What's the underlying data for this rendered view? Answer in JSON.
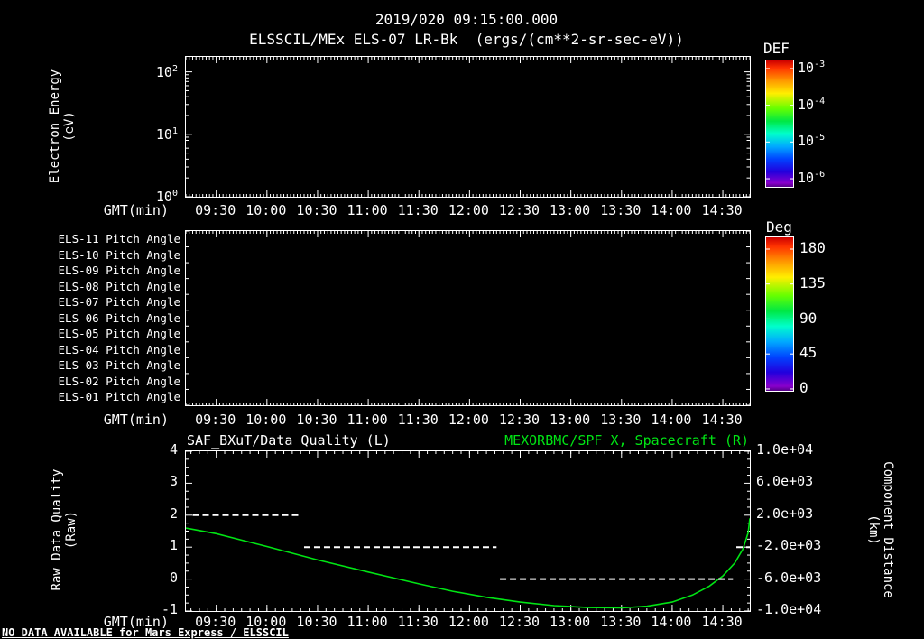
{
  "titles": {
    "datetime": "2019/020 09:15:00.000",
    "main": "ELSSCIL/MEx ELS-07 LR-Bk  (ergs/(cm**2-sr-sec-eV))"
  },
  "colors": {
    "background": "#000000",
    "foreground": "#ffffff",
    "green": "#00e414",
    "rainbow": [
      "#cc0000 0%",
      "#ff3300 6%",
      "#ff9900 16%",
      "#ffee00 26%",
      "#66ff00 38%",
      "#00e844 48%",
      "#00ffcc 58%",
      "#00aaff 68%",
      "#0044ff 78%",
      "#2200dd 88%",
      "#8800cc 97%",
      "#550088 100%"
    ]
  },
  "time_axis": {
    "label": "GMT(min)",
    "ticks": [
      "09:30",
      "10:00",
      "10:30",
      "11:00",
      "11:30",
      "12:00",
      "12:30",
      "13:00",
      "13:30",
      "14:00",
      "14:30"
    ],
    "tick_minutes": [
      570,
      600,
      630,
      660,
      690,
      720,
      750,
      780,
      810,
      840,
      870
    ],
    "xlim_minutes": [
      552,
      886
    ]
  },
  "panel1": {
    "ylabel_line1": "Electron Energy",
    "ylabel_line2": "(eV)",
    "yticks": [
      {
        "base": "10",
        "exp": "2"
      },
      {
        "base": "10",
        "exp": "1"
      },
      {
        "base": "10",
        "exp": "0"
      }
    ]
  },
  "colorbar_def": {
    "title": "DEF",
    "ticks": [
      {
        "base": "10",
        "exp": "-3"
      },
      {
        "base": "10",
        "exp": "-4"
      },
      {
        "base": "10",
        "exp": "-5"
      },
      {
        "base": "10",
        "exp": "-6"
      }
    ]
  },
  "panel2": {
    "row_labels": [
      "ELS-11 Pitch Angle",
      "ELS-10 Pitch Angle",
      "ELS-09 Pitch Angle",
      "ELS-08 Pitch Angle",
      "ELS-07 Pitch Angle",
      "ELS-06 Pitch Angle",
      "ELS-05 Pitch Angle",
      "ELS-04 Pitch Angle",
      "ELS-03 Pitch Angle",
      "ELS-02 Pitch Angle",
      "ELS-01 Pitch Angle"
    ]
  },
  "colorbar_deg": {
    "title": "Deg",
    "ticks": [
      "180",
      "135",
      "90",
      "45",
      "0"
    ]
  },
  "panel3": {
    "left_title": "SAF_BXuT/Data Quality (L)",
    "right_title": "MEXORBMC/SPF X, Spacecraft (R)",
    "ylabel_left_line1": "Raw Data Quality",
    "ylabel_left_line2": "(Raw)",
    "ylabel_right_line1": "Component Distance",
    "ylabel_right_line2": "(km)",
    "yticks_left": [
      "4",
      "3",
      "2",
      "1",
      "0",
      "-1"
    ],
    "yticks_right": [
      "1.0e+04",
      "6.0e+03",
      "2.0e+03",
      "-2.0e+03",
      "-6.0e+03",
      "-1.0e+04"
    ]
  },
  "footer": {
    "no_data_notice": "NO DATA AVAILABLE for Mars Express / ELSSCIL"
  },
  "chart_data": [
    {
      "type": "heatmap",
      "title": "ELSSCIL/MEx ELS-07 LR-Bk",
      "units": "ergs/(cm**2-sr-sec-eV)",
      "xlabel": "GMT(min)",
      "x_ticks": [
        "09:30",
        "10:00",
        "10:30",
        "11:00",
        "11:30",
        "12:00",
        "12:30",
        "13:00",
        "13:30",
        "14:00",
        "14:30"
      ],
      "ylabel": "Electron Energy (eV)",
      "yscale": "log",
      "ylim": [
        1,
        175
      ],
      "colorbar": {
        "label": "DEF",
        "scale": "log",
        "ticks": [
          "10^-3",
          "10^-4",
          "10^-5",
          "10^-6"
        ]
      },
      "values": []
    },
    {
      "type": "heatmap",
      "title": "Pitch Angle panels ELS-01..ELS-11",
      "xlabel": "GMT(min)",
      "x_ticks": [
        "09:30",
        "10:00",
        "10:30",
        "11:00",
        "11:30",
        "12:00",
        "12:30",
        "13:00",
        "13:30",
        "14:00",
        "14:30"
      ],
      "rows": [
        "ELS-11",
        "ELS-10",
        "ELS-09",
        "ELS-08",
        "ELS-07",
        "ELS-06",
        "ELS-05",
        "ELS-04",
        "ELS-03",
        "ELS-02",
        "ELS-01"
      ],
      "colorbar": {
        "label": "Deg",
        "range": [
          0,
          180
        ],
        "ticks": [
          180,
          135,
          90,
          45,
          0
        ]
      },
      "values": []
    },
    {
      "type": "line",
      "left_series_title": "SAF_BXuT/Data Quality (L)",
      "right_series_title": "MEXORBMC/SPF X, Spacecraft (R)",
      "xlabel": "GMT(min)",
      "x_ticks": [
        "09:30",
        "10:00",
        "10:30",
        "11:00",
        "11:30",
        "12:00",
        "12:30",
        "13:00",
        "13:30",
        "14:00",
        "14:30"
      ],
      "xlim_minutes": [
        552,
        886
      ],
      "ylim_left": [
        -1,
        4
      ],
      "ylim_right": [
        -10000,
        10000
      ],
      "series": [
        {
          "name": "MEXORBMC/SPF X, Spacecraft",
          "axis": "right",
          "color": "green",
          "points": [
            [
              552,
              400
            ],
            [
              570,
              -320
            ],
            [
              600,
              -1920
            ],
            [
              630,
              -3600
            ],
            [
              660,
              -5120
            ],
            [
              690,
              -6600
            ],
            [
              710,
              -7520
            ],
            [
              730,
              -8280
            ],
            [
              750,
              -8880
            ],
            [
              770,
              -9320
            ],
            [
              790,
              -9560
            ],
            [
              810,
              -9600
            ],
            [
              825,
              -9400
            ],
            [
              840,
              -8880
            ],
            [
              852,
              -8000
            ],
            [
              862,
              -6880
            ],
            [
              870,
              -5600
            ],
            [
              877,
              -4000
            ],
            [
              882,
              -2200
            ],
            [
              885,
              -200
            ],
            [
              886,
              1600
            ]
          ]
        },
        {
          "name": "SAF_BXuT/Data Quality",
          "axis": "left",
          "style": "dashed",
          "color": "white",
          "segments": [
            {
              "value": 2,
              "t_start": 556,
              "t_end": 620
            },
            {
              "value": 1,
              "t_start": 622,
              "t_end": 736
            },
            {
              "value": 0,
              "t_start": 738,
              "t_end": 876
            },
            {
              "value": 1,
              "t_start": 878,
              "t_end": 886
            }
          ]
        }
      ]
    }
  ]
}
